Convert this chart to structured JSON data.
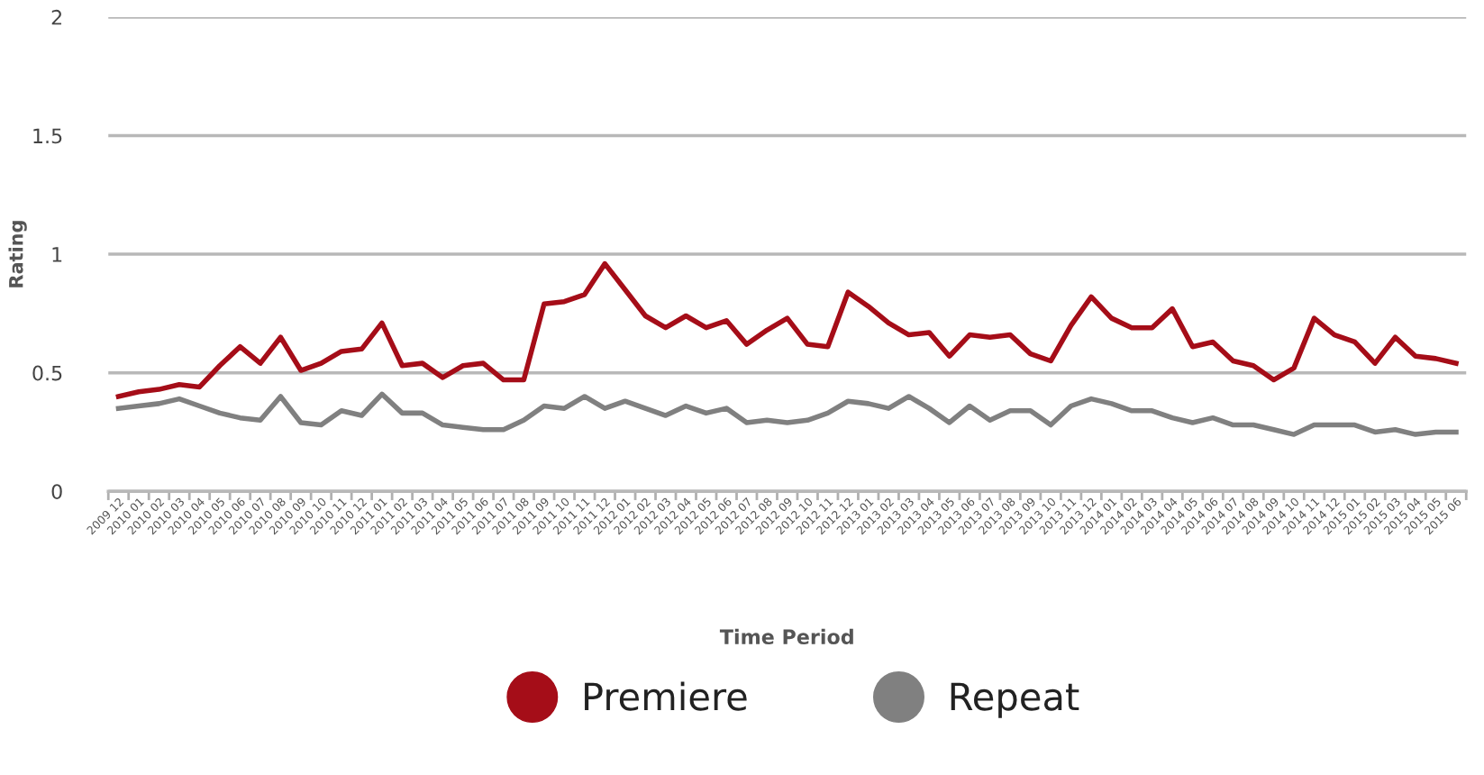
{
  "chart_data": {
    "type": "line",
    "xlabel": "Time Period",
    "ylabel": "Rating",
    "categories": [
      "2009 12",
      "2010 01",
      "2010 02",
      "2010 03",
      "2010 04",
      "2010 05",
      "2010 06",
      "2010 07",
      "2010 08",
      "2010 09",
      "2010 10",
      "2010 11",
      "2010 12",
      "2011 01",
      "2011 02",
      "2011 03",
      "2011 04",
      "2011 05",
      "2011 06",
      "2011 07",
      "2011 08",
      "2011 09",
      "2011 10",
      "2011 11",
      "2011 12",
      "2012 01",
      "2012 02",
      "2012 03",
      "2012 04",
      "2012 05",
      "2012 06",
      "2012 07",
      "2012 08",
      "2012 09",
      "2012 10",
      "2012 11",
      "2012 12",
      "2013 01",
      "2013 02",
      "2013 03",
      "2013 04",
      "2013 05",
      "2013 06",
      "2013 07",
      "2013 08",
      "2013 09",
      "2013 10",
      "2013 11",
      "2013 12",
      "2014 01",
      "2014 02",
      "2014 03",
      "2014 04",
      "2014 05",
      "2014 06",
      "2014 07",
      "2014 08",
      "2014 09",
      "2014 10",
      "2014 11",
      "2014 12",
      "2015 01",
      "2015 02",
      "2015 03",
      "2015 04",
      "2015 05",
      "2015 06"
    ],
    "series": [
      {
        "name": "Premiere",
        "color": "#a50d18",
        "values": [
          0.4,
          0.42,
          0.43,
          0.45,
          0.44,
          0.53,
          0.61,
          0.54,
          0.65,
          0.51,
          0.54,
          0.59,
          0.6,
          0.71,
          0.53,
          0.54,
          0.48,
          0.53,
          0.54,
          0.47,
          0.47,
          0.79,
          0.8,
          0.83,
          0.96,
          0.85,
          0.74,
          0.69,
          0.74,
          0.69,
          0.72,
          0.62,
          0.68,
          0.73,
          0.62,
          0.61,
          0.84,
          0.78,
          0.71,
          0.66,
          0.67,
          0.57,
          0.66,
          0.65,
          0.66,
          0.58,
          0.55,
          0.7,
          0.82,
          0.73,
          0.69,
          0.69,
          0.77,
          0.61,
          0.63,
          0.55,
          0.53,
          0.47,
          0.52,
          0.73,
          0.66,
          0.63,
          0.54,
          0.65,
          0.57,
          0.56,
          0.54
        ]
      },
      {
        "name": "Repeat",
        "color": "#808080",
        "values": [
          0.35,
          0.36,
          0.37,
          0.39,
          0.36,
          0.33,
          0.31,
          0.3,
          0.4,
          0.29,
          0.28,
          0.34,
          0.32,
          0.41,
          0.33,
          0.33,
          0.28,
          0.27,
          0.26,
          0.26,
          0.3,
          0.36,
          0.35,
          0.4,
          0.35,
          0.38,
          0.35,
          0.32,
          0.36,
          0.33,
          0.35,
          0.29,
          0.3,
          0.29,
          0.3,
          0.33,
          0.38,
          0.37,
          0.35,
          0.4,
          0.35,
          0.29,
          0.36,
          0.3,
          0.34,
          0.34,
          0.28,
          0.36,
          0.39,
          0.37,
          0.34,
          0.34,
          0.31,
          0.29,
          0.31,
          0.28,
          0.28,
          0.26,
          0.24,
          0.28,
          0.28,
          0.28,
          0.25,
          0.26,
          0.24,
          0.25,
          0.25
        ]
      }
    ],
    "ylim": [
      0,
      2
    ],
    "yticks": [
      0,
      0.5,
      1,
      1.5,
      2
    ],
    "grid": "y",
    "legend": "bottom",
    "marker": "none",
    "line_style": "solid"
  }
}
